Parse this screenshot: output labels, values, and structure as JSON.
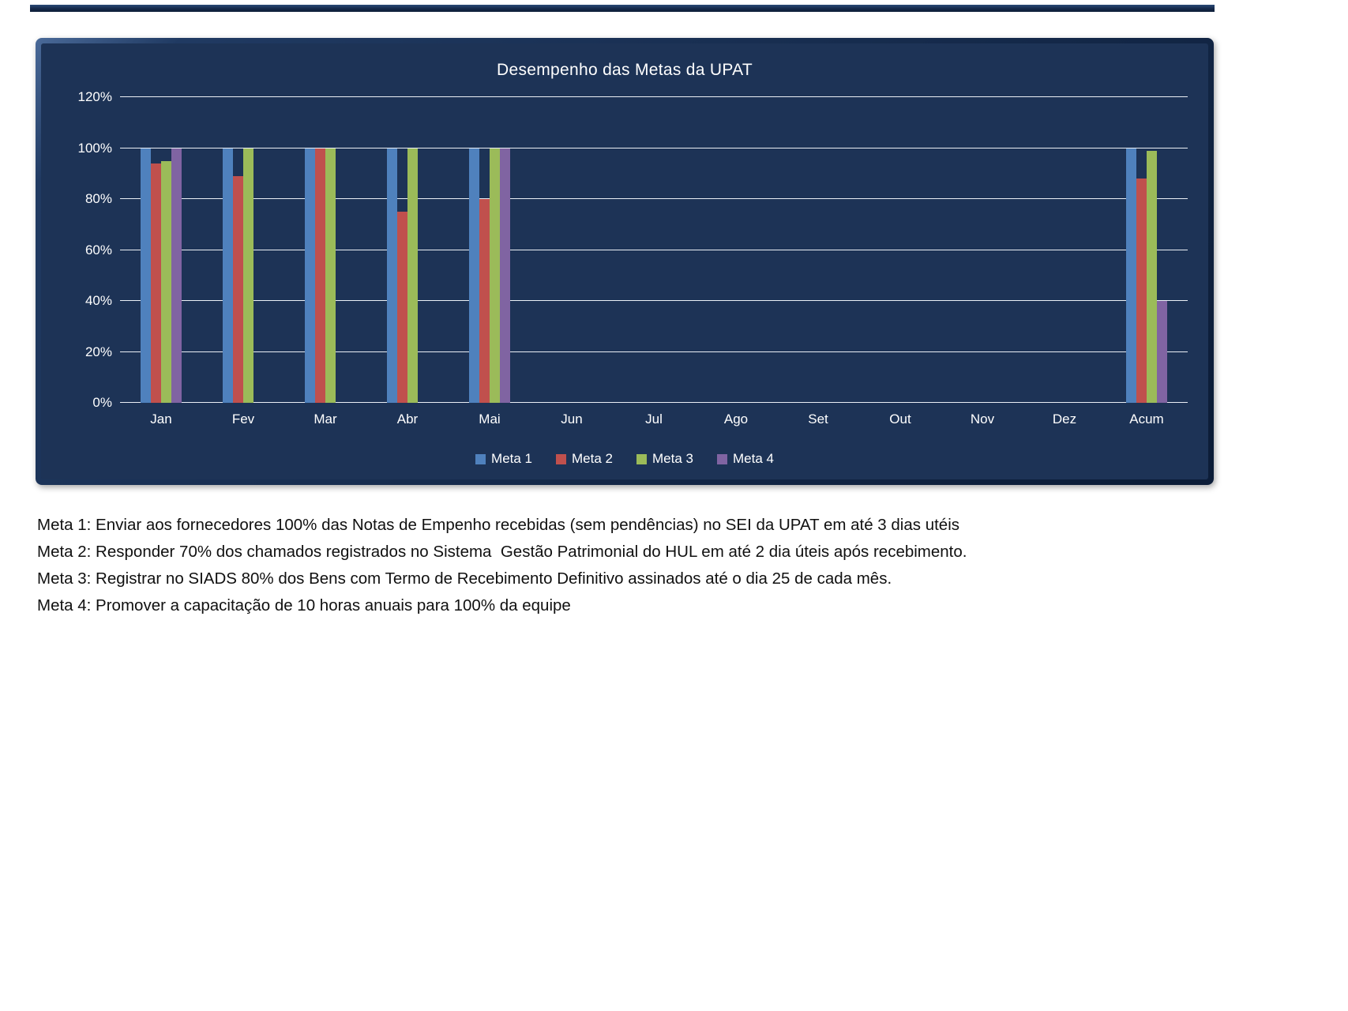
{
  "chart_data": {
    "type": "bar",
    "title": "Desempenho das Metas da UPAT",
    "categories": [
      "Jan",
      "Fev",
      "Mar",
      "Abr",
      "Mai",
      "Jun",
      "Jul",
      "Ago",
      "Set",
      "Out",
      "Nov",
      "Dez",
      "Acum"
    ],
    "series": [
      {
        "name": "Meta 1",
        "color": "#4F81BD",
        "values": [
          100,
          100,
          100,
          100,
          100,
          0,
          0,
          0,
          0,
          0,
          0,
          0,
          100
        ]
      },
      {
        "name": "Meta 2",
        "color": "#C0504D",
        "values": [
          94,
          89,
          100,
          75,
          80,
          0,
          0,
          0,
          0,
          0,
          0,
          0,
          88
        ]
      },
      {
        "name": "Meta 3",
        "color": "#9BBB59",
        "values": [
          95,
          100,
          100,
          100,
          100,
          0,
          0,
          0,
          0,
          0,
          0,
          0,
          99
        ]
      },
      {
        "name": "Meta 4",
        "color": "#8064A2",
        "values": [
          100,
          0,
          0,
          0,
          100,
          0,
          0,
          0,
          0,
          0,
          0,
          0,
          40
        ]
      }
    ],
    "ylim": [
      0,
      120
    ],
    "yticks": [
      "0%",
      "20%",
      "40%",
      "60%",
      "80%",
      "100%",
      "120%"
    ],
    "grid": true,
    "legend_position": "bottom",
    "plot_background": "#1d3356",
    "gridline_color": "#ebf0f6",
    "text_color": "#ffffff"
  },
  "notes": {
    "lines": [
      "Meta 1: Enviar aos fornecedores 100% das Notas de Empenho recebidas (sem pendências) no SEI da UPAT em até 3 dias utéis",
      "Meta 2: Responder 70% dos chamados registrados no Sistema  Gestão Patrimonial do HUL em até 2 dia úteis após recebimento.",
      "Meta 3: Registrar no SIADS 80% dos Bens com Termo de Recebimento Definitivo assinados até o dia 25 de cada mês.",
      "Meta 4: Promover a capacitação de 10 horas anuais para 100% da equipe"
    ]
  }
}
